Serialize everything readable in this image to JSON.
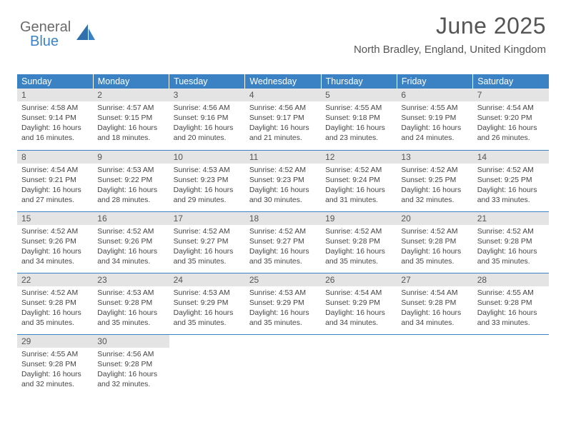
{
  "logo": {
    "line1": "General",
    "line2": "Blue"
  },
  "title": "June 2025",
  "subtitle": "North Bradley, England, United Kingdom",
  "colors": {
    "header_bg": "#3b82c4",
    "daynum_bg": "#e4e4e4",
    "text": "#444",
    "title_color": "#555"
  },
  "font": {
    "title_size": 32,
    "subtitle_size": 15,
    "cell_size": 10.4,
    "daynum_size": 12
  },
  "weekdays": [
    "Sunday",
    "Monday",
    "Tuesday",
    "Wednesday",
    "Thursday",
    "Friday",
    "Saturday"
  ],
  "days": [
    {
      "n": 1,
      "sr": "4:58 AM",
      "ss": "9:14 PM",
      "dl": "16 hours and 16 minutes."
    },
    {
      "n": 2,
      "sr": "4:57 AM",
      "ss": "9:15 PM",
      "dl": "16 hours and 18 minutes."
    },
    {
      "n": 3,
      "sr": "4:56 AM",
      "ss": "9:16 PM",
      "dl": "16 hours and 20 minutes."
    },
    {
      "n": 4,
      "sr": "4:56 AM",
      "ss": "9:17 PM",
      "dl": "16 hours and 21 minutes."
    },
    {
      "n": 5,
      "sr": "4:55 AM",
      "ss": "9:18 PM",
      "dl": "16 hours and 23 minutes."
    },
    {
      "n": 6,
      "sr": "4:55 AM",
      "ss": "9:19 PM",
      "dl": "16 hours and 24 minutes."
    },
    {
      "n": 7,
      "sr": "4:54 AM",
      "ss": "9:20 PM",
      "dl": "16 hours and 26 minutes."
    },
    {
      "n": 8,
      "sr": "4:54 AM",
      "ss": "9:21 PM",
      "dl": "16 hours and 27 minutes."
    },
    {
      "n": 9,
      "sr": "4:53 AM",
      "ss": "9:22 PM",
      "dl": "16 hours and 28 minutes."
    },
    {
      "n": 10,
      "sr": "4:53 AM",
      "ss": "9:23 PM",
      "dl": "16 hours and 29 minutes."
    },
    {
      "n": 11,
      "sr": "4:52 AM",
      "ss": "9:23 PM",
      "dl": "16 hours and 30 minutes."
    },
    {
      "n": 12,
      "sr": "4:52 AM",
      "ss": "9:24 PM",
      "dl": "16 hours and 31 minutes."
    },
    {
      "n": 13,
      "sr": "4:52 AM",
      "ss": "9:25 PM",
      "dl": "16 hours and 32 minutes."
    },
    {
      "n": 14,
      "sr": "4:52 AM",
      "ss": "9:25 PM",
      "dl": "16 hours and 33 minutes."
    },
    {
      "n": 15,
      "sr": "4:52 AM",
      "ss": "9:26 PM",
      "dl": "16 hours and 34 minutes."
    },
    {
      "n": 16,
      "sr": "4:52 AM",
      "ss": "9:26 PM",
      "dl": "16 hours and 34 minutes."
    },
    {
      "n": 17,
      "sr": "4:52 AM",
      "ss": "9:27 PM",
      "dl": "16 hours and 35 minutes."
    },
    {
      "n": 18,
      "sr": "4:52 AM",
      "ss": "9:27 PM",
      "dl": "16 hours and 35 minutes."
    },
    {
      "n": 19,
      "sr": "4:52 AM",
      "ss": "9:28 PM",
      "dl": "16 hours and 35 minutes."
    },
    {
      "n": 20,
      "sr": "4:52 AM",
      "ss": "9:28 PM",
      "dl": "16 hours and 35 minutes."
    },
    {
      "n": 21,
      "sr": "4:52 AM",
      "ss": "9:28 PM",
      "dl": "16 hours and 35 minutes."
    },
    {
      "n": 22,
      "sr": "4:52 AM",
      "ss": "9:28 PM",
      "dl": "16 hours and 35 minutes."
    },
    {
      "n": 23,
      "sr": "4:53 AM",
      "ss": "9:28 PM",
      "dl": "16 hours and 35 minutes."
    },
    {
      "n": 24,
      "sr": "4:53 AM",
      "ss": "9:29 PM",
      "dl": "16 hours and 35 minutes."
    },
    {
      "n": 25,
      "sr": "4:53 AM",
      "ss": "9:29 PM",
      "dl": "16 hours and 35 minutes."
    },
    {
      "n": 26,
      "sr": "4:54 AM",
      "ss": "9:29 PM",
      "dl": "16 hours and 34 minutes."
    },
    {
      "n": 27,
      "sr": "4:54 AM",
      "ss": "9:28 PM",
      "dl": "16 hours and 34 minutes."
    },
    {
      "n": 28,
      "sr": "4:55 AM",
      "ss": "9:28 PM",
      "dl": "16 hours and 33 minutes."
    },
    {
      "n": 29,
      "sr": "4:55 AM",
      "ss": "9:28 PM",
      "dl": "16 hours and 32 minutes."
    },
    {
      "n": 30,
      "sr": "4:56 AM",
      "ss": "9:28 PM",
      "dl": "16 hours and 32 minutes."
    }
  ],
  "labels": {
    "sunrise": "Sunrise:",
    "sunset": "Sunset:",
    "daylight": "Daylight:"
  },
  "first_day_column": 0
}
